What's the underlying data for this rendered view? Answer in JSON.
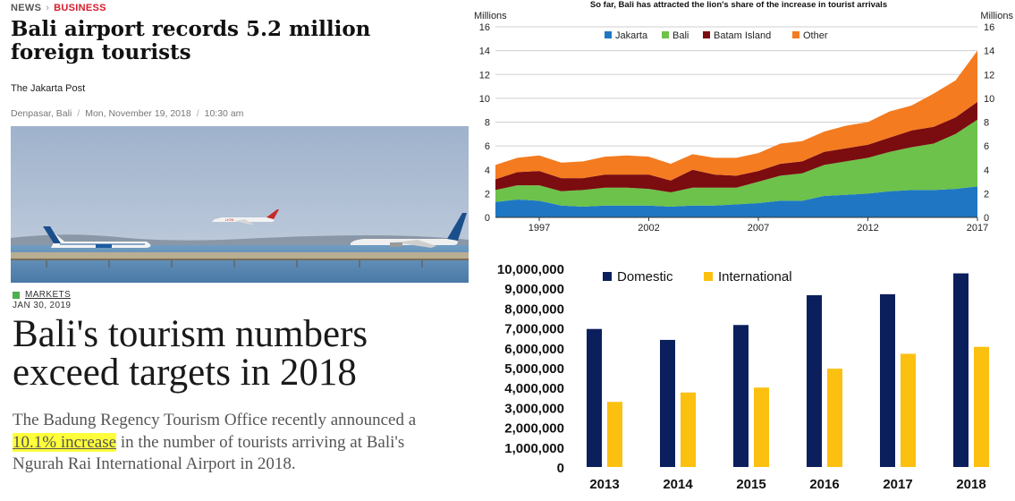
{
  "article1": {
    "breadcrumb": {
      "section": "NEWS",
      "subsection": "BUSINESS"
    },
    "headline": "Bali airport records 5.2 million foreign tourists",
    "publisher": "The Jakarta Post",
    "location": "Denpasar, Bali",
    "date": "Mon, November 19, 2018",
    "time": "10:30 am"
  },
  "article2": {
    "section": "MARKETS",
    "date": "JAN 30, 2019",
    "headline": "Bali's tourism numbers exceed targets in 2018",
    "body_before": "The Badung Regency Tourism Office recently announced a ",
    "body_highlight": "10.1% increase",
    "body_after": " in the number of tourists arriving at Bali's Ngurah Rai International Airport in 2018."
  },
  "chart_data": [
    {
      "type": "area",
      "stacked": true,
      "title": "So far, Bali has attracted the lion's share of the increase in tourist arrivals",
      "ylabel_left": "Millions",
      "ylabel_right": "Millions",
      "ylim": [
        0,
        16
      ],
      "yticks": [
        0,
        2,
        4,
        6,
        8,
        10,
        12,
        14,
        16
      ],
      "xlim": [
        1995,
        2017
      ],
      "xticks": [
        1997,
        2002,
        2007,
        2012,
        2017
      ],
      "x": [
        1995,
        1996,
        1997,
        1998,
        1999,
        2000,
        2001,
        2002,
        2003,
        2004,
        2005,
        2006,
        2007,
        2008,
        2009,
        2010,
        2011,
        2012,
        2013,
        2014,
        2015,
        2016,
        2017
      ],
      "legend_position": "top",
      "grid": true,
      "series": [
        {
          "name": "Jakarta",
          "color": "#1f77c4",
          "values": [
            1.3,
            1.5,
            1.4,
            1.0,
            0.9,
            1.0,
            1.0,
            1.0,
            0.9,
            1.0,
            1.0,
            1.1,
            1.2,
            1.4,
            1.4,
            1.8,
            1.9,
            2.0,
            2.2,
            2.3,
            2.3,
            2.4,
            2.6
          ]
        },
        {
          "name": "Bali",
          "color": "#6cc24a",
          "values": [
            1.0,
            1.2,
            1.3,
            1.2,
            1.4,
            1.5,
            1.5,
            1.4,
            1.2,
            1.5,
            1.5,
            1.4,
            1.8,
            2.1,
            2.3,
            2.6,
            2.8,
            3.0,
            3.3,
            3.6,
            3.9,
            4.6,
            5.6
          ]
        },
        {
          "name": "Batam Island",
          "color": "#7b0c10",
          "values": [
            0.9,
            1.1,
            1.2,
            1.1,
            1.0,
            1.1,
            1.1,
            1.2,
            1.0,
            1.5,
            1.1,
            1.0,
            0.9,
            1.0,
            1.0,
            1.1,
            1.1,
            1.1,
            1.2,
            1.4,
            1.4,
            1.4,
            1.5
          ]
        },
        {
          "name": "Other",
          "color": "#f47b20",
          "values": [
            1.2,
            1.2,
            1.3,
            1.3,
            1.4,
            1.5,
            1.6,
            1.5,
            1.4,
            1.3,
            1.4,
            1.5,
            1.5,
            1.7,
            1.7,
            1.7,
            1.9,
            1.9,
            2.2,
            2.1,
            2.8,
            3.1,
            4.3
          ]
        }
      ]
    },
    {
      "type": "bar",
      "categories": [
        "2013",
        "2014",
        "2015",
        "2016",
        "2017",
        "2018"
      ],
      "ylim": [
        0,
        10000000
      ],
      "yticks": [
        0,
        1000000,
        2000000,
        3000000,
        4000000,
        5000000,
        6000000,
        7000000,
        8000000,
        9000000,
        10000000
      ],
      "ytick_labels": [
        "0",
        "1,000,000",
        "2,000,000",
        "3,000,000",
        "4,000,000",
        "5,000,000",
        "6,000,000",
        "7,000,000",
        "8,000,000",
        "9,000,000",
        "10,000,000"
      ],
      "legend_position": "top",
      "grid": false,
      "series": [
        {
          "name": "Domestic",
          "color": "#0b1f5c",
          "values": [
            6950000,
            6400000,
            7150000,
            8650000,
            8700000,
            9750000
          ]
        },
        {
          "name": "International",
          "color": "#fcc010",
          "values": [
            3280000,
            3750000,
            4000000,
            4950000,
            5700000,
            6050000
          ]
        }
      ]
    }
  ]
}
